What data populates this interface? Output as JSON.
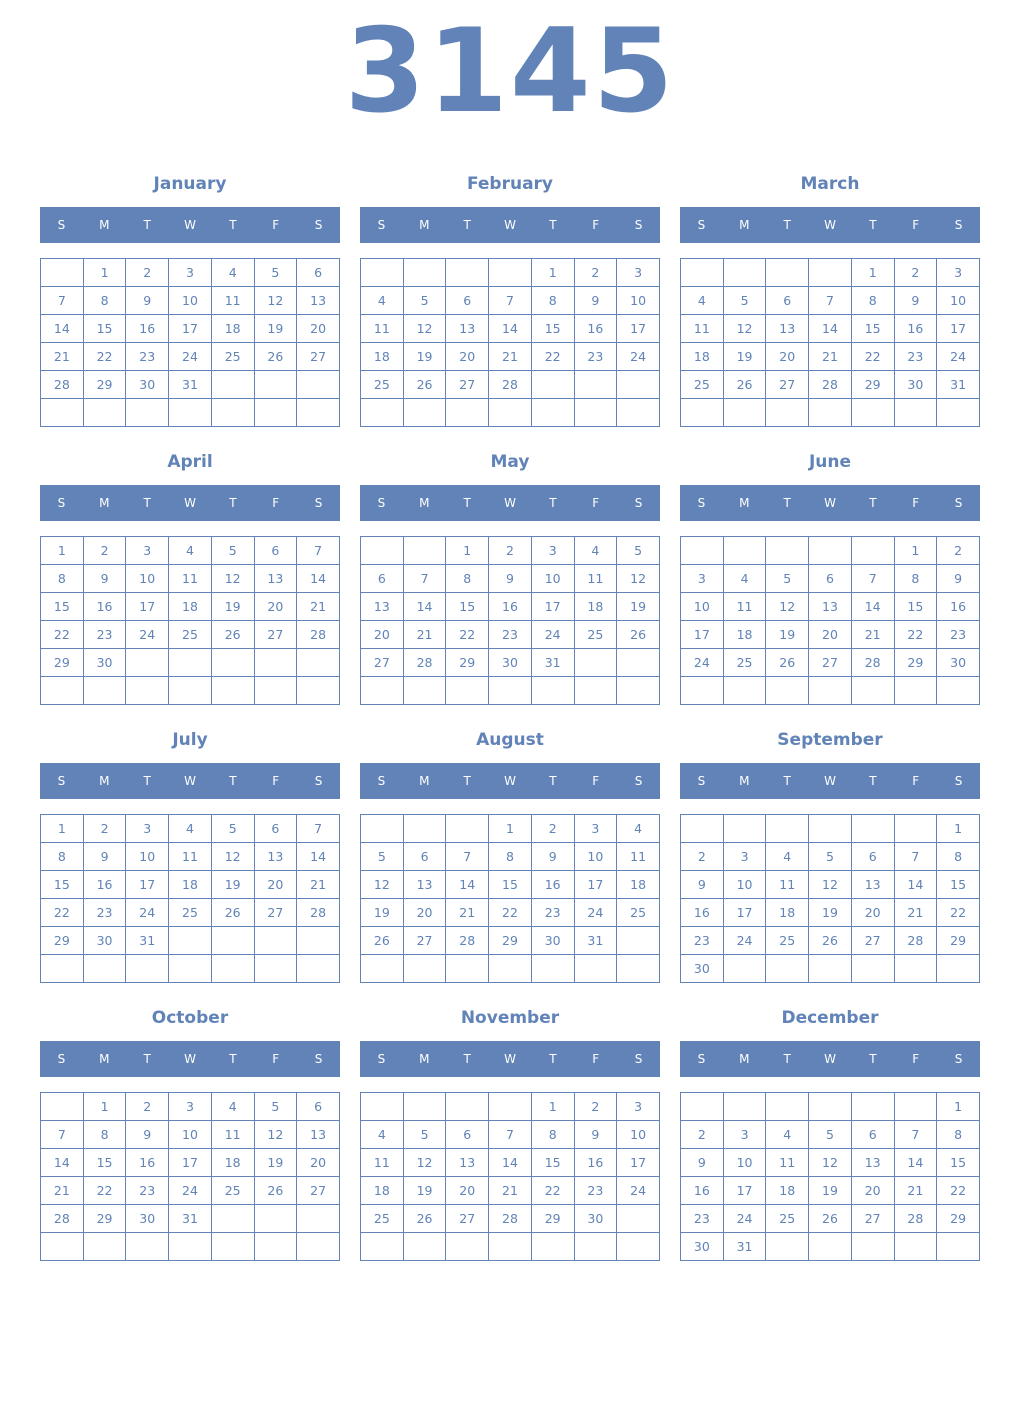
{
  "year": "3145",
  "accent_color": "#6183b7",
  "weekday_labels": [
    "S",
    "M",
    "T",
    "W",
    "T",
    "F",
    "S"
  ],
  "months": [
    {
      "name": "January",
      "start_weekday": 1,
      "days": 31
    },
    {
      "name": "February",
      "start_weekday": 4,
      "days": 28
    },
    {
      "name": "March",
      "start_weekday": 4,
      "days": 31
    },
    {
      "name": "April",
      "start_weekday": 0,
      "days": 30
    },
    {
      "name": "May",
      "start_weekday": 2,
      "days": 31
    },
    {
      "name": "June",
      "start_weekday": 5,
      "days": 30
    },
    {
      "name": "July",
      "start_weekday": 0,
      "days": 31
    },
    {
      "name": "August",
      "start_weekday": 3,
      "days": 31
    },
    {
      "name": "September",
      "start_weekday": 6,
      "days": 30
    },
    {
      "name": "October",
      "start_weekday": 1,
      "days": 31
    },
    {
      "name": "November",
      "start_weekday": 4,
      "days": 30
    },
    {
      "name": "December",
      "start_weekday": 6,
      "days": 31
    }
  ]
}
